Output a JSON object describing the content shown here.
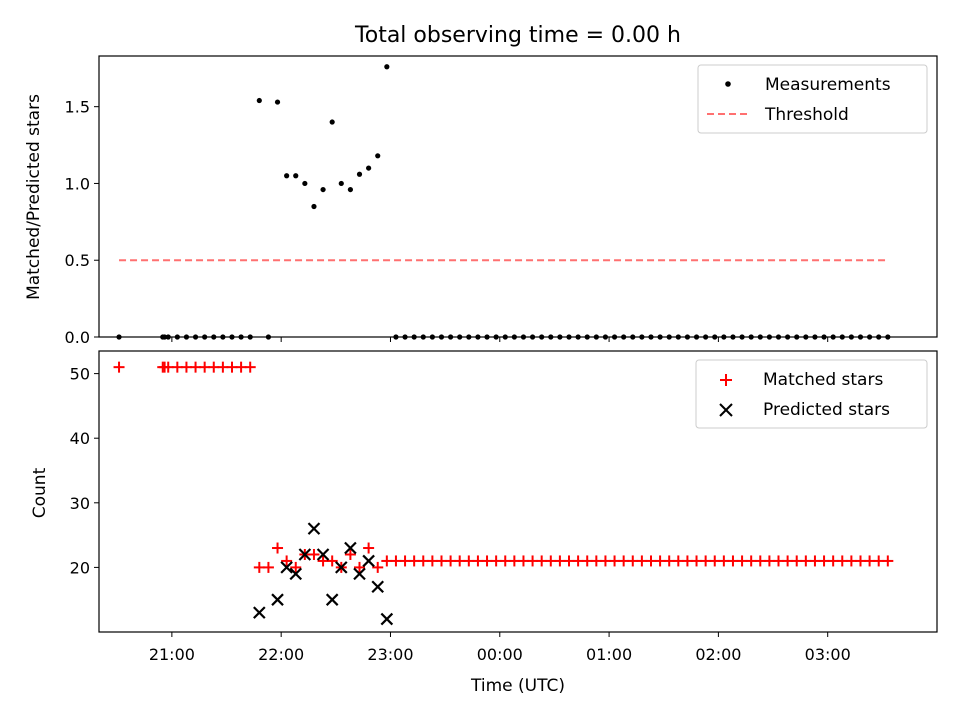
{
  "chart_data": [
    {
      "type": "scatter",
      "title": "Total observing time = 0.00 h",
      "xlabel": "",
      "ylabel": "Matched/Predicted stars",
      "xlim": [
        "20:20",
        "04:00"
      ],
      "ylim": [
        0,
        1.83
      ],
      "yticks": [
        0.0,
        0.5,
        1.0,
        1.5
      ],
      "ytick_labels": [
        "0.0",
        "0.5",
        "1.0",
        "1.5"
      ],
      "legend_position": "top-right",
      "series": [
        {
          "name": "Measurements",
          "marker": "dot",
          "color": "#000000",
          "x": [
            "20:31",
            "20:55",
            "20:56",
            "20:58",
            "21:03",
            "21:08",
            "21:13",
            "21:18",
            "21:23",
            "21:28",
            "21:33",
            "21:38",
            "21:43",
            "21:48",
            "21:53",
            "21:58",
            "22:03",
            "22:08",
            "22:13",
            "22:18",
            "22:23",
            "22:28",
            "22:33",
            "22:38",
            "22:43",
            "22:48",
            "22:53",
            "22:58",
            "23:03",
            "23:08",
            "23:13",
            "23:18",
            "23:23",
            "23:28",
            "23:33",
            "23:38",
            "23:43",
            "23:48",
            "23:53",
            "23:58",
            "00:03",
            "00:08",
            "00:13",
            "00:18",
            "00:23",
            "00:28",
            "00:33",
            "00:38",
            "00:43",
            "00:48",
            "00:53",
            "00:58",
            "01:03",
            "01:08",
            "01:13",
            "01:18",
            "01:23",
            "01:28",
            "01:33",
            "01:38",
            "01:43",
            "01:48",
            "01:53",
            "01:58",
            "02:03",
            "02:08",
            "02:13",
            "02:18",
            "02:23",
            "02:28",
            "02:33",
            "02:38",
            "02:43",
            "02:48",
            "02:53",
            "02:58",
            "03:03",
            "03:08",
            "03:13",
            "03:18",
            "03:23",
            "03:28",
            "03:33"
          ],
          "y": [
            0,
            0,
            0,
            0,
            0,
            0,
            0,
            0,
            0,
            0,
            0,
            0,
            0,
            1.54,
            0,
            1.53,
            1.05,
            1.05,
            1.0,
            0.85,
            0.96,
            1.4,
            1.0,
            0.96,
            1.06,
            1.1,
            1.18,
            1.76,
            0,
            0,
            0,
            0,
            0,
            0,
            0,
            0,
            0,
            0,
            0,
            0,
            0,
            0,
            0,
            0,
            0,
            0,
            0,
            0,
            0,
            0,
            0,
            0,
            0,
            0,
            0,
            0,
            0,
            0,
            0,
            0,
            0,
            0,
            0,
            0,
            0,
            0,
            0,
            0,
            0,
            0,
            0,
            0,
            0,
            0,
            0,
            0,
            0,
            0,
            0,
            0,
            0,
            0,
            0
          ]
        },
        {
          "name": "Threshold",
          "line": "dashed",
          "color": "#ff7070",
          "x": [
            "20:31",
            "03:33"
          ],
          "y": [
            0.5,
            0.5
          ]
        }
      ]
    },
    {
      "type": "scatter",
      "title": "",
      "xlabel": "Time (UTC)",
      "ylabel": "Count",
      "xlim": [
        "20:20",
        "04:00"
      ],
      "ylim": [
        10,
        53.5
      ],
      "yticks": [
        20,
        30,
        40,
        50
      ],
      "ytick_labels": [
        "20",
        "30",
        "40",
        "50"
      ],
      "xticks": [
        "21:00",
        "22:00",
        "23:00",
        "00:00",
        "01:00",
        "02:00",
        "03:00"
      ],
      "legend_position": "top-right",
      "series": [
        {
          "name": "Matched stars",
          "marker": "plus",
          "color": "#ff0000",
          "x": [
            "20:31",
            "20:55",
            "20:56",
            "20:58",
            "21:03",
            "21:08",
            "21:13",
            "21:18",
            "21:23",
            "21:28",
            "21:33",
            "21:38",
            "21:43",
            "21:48",
            "21:53",
            "21:58",
            "22:03",
            "22:08",
            "22:13",
            "22:18",
            "22:23",
            "22:28",
            "22:33",
            "22:38",
            "22:43",
            "22:48",
            "22:53",
            "22:58",
            "23:03",
            "23:08",
            "23:13",
            "23:18",
            "23:23",
            "23:28",
            "23:33",
            "23:38",
            "23:43",
            "23:48",
            "23:53",
            "23:58",
            "00:03",
            "00:08",
            "00:13",
            "00:18",
            "00:23",
            "00:28",
            "00:33",
            "00:38",
            "00:43",
            "00:48",
            "00:53",
            "00:58",
            "01:03",
            "01:08",
            "01:13",
            "01:18",
            "01:23",
            "01:28",
            "01:33",
            "01:38",
            "01:43",
            "01:48",
            "01:53",
            "01:58",
            "02:03",
            "02:08",
            "02:13",
            "02:18",
            "02:23",
            "02:28",
            "02:33",
            "02:38",
            "02:43",
            "02:48",
            "02:53",
            "02:58",
            "03:03",
            "03:08",
            "03:13",
            "03:18",
            "03:23",
            "03:28",
            "03:33"
          ],
          "y": [
            51,
            51,
            51,
            51,
            51,
            51,
            51,
            51,
            51,
            51,
            51,
            51,
            51,
            20,
            20,
            23,
            21,
            20,
            22,
            22,
            21,
            21,
            20,
            22,
            20,
            23,
            20,
            21,
            21,
            21,
            21,
            21,
            21,
            21,
            21,
            21,
            21,
            21,
            21,
            21,
            21,
            21,
            21,
            21,
            21,
            21,
            21,
            21,
            21,
            21,
            21,
            21,
            21,
            21,
            21,
            21,
            21,
            21,
            21,
            21,
            21,
            21,
            21,
            21,
            21,
            21,
            21,
            21,
            21,
            21,
            21,
            21,
            21,
            21,
            21,
            21,
            21,
            21,
            21,
            21,
            21,
            21,
            21
          ]
        },
        {
          "name": "Predicted stars",
          "marker": "x",
          "color": "#000000",
          "x": [
            "21:48",
            "21:58",
            "22:03",
            "22:08",
            "22:13",
            "22:18",
            "22:23",
            "22:28",
            "22:33",
            "22:38",
            "22:43",
            "22:48",
            "22:53",
            "22:58"
          ],
          "y": [
            13,
            15,
            20,
            19,
            22,
            26,
            22,
            15,
            20,
            23,
            19,
            21,
            17,
            12
          ]
        }
      ]
    }
  ]
}
